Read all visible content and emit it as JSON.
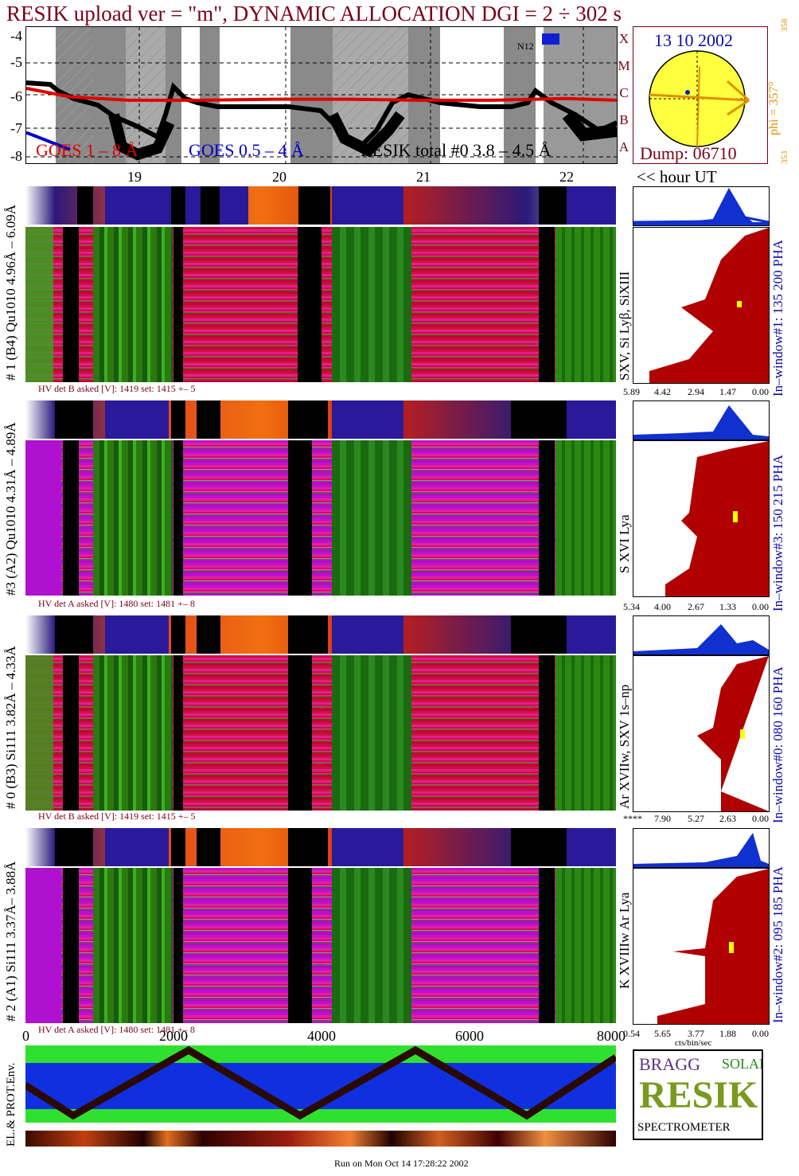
{
  "title": "RESIK upload ver = \"m\", DYNAMIC ALLOCATION  DGI =   2 ÷ 302 s",
  "goes": {
    "y_ticks": [
      "-4",
      "-5",
      "-6",
      "-7",
      "-8"
    ],
    "legend_goes1": "GOES 1 – 8 Å",
    "legend_goes2": "GOES 0.5 – 4 Å",
    "legend_resik": "RESIK total #0  3.8 – 4.5 Å",
    "class_labels": [
      "X",
      "M",
      "C",
      "B",
      "A"
    ],
    "hour_labels": [
      "19",
      "20",
      "21",
      "22"
    ],
    "hour_axis_caption": "<< hour UT",
    "annotation": "N12"
  },
  "sun": {
    "date": "13 10 2002",
    "phi": "phi = 357°",
    "phi_top": "358",
    "phi_bottom": "353",
    "dump": "Dump: 06710"
  },
  "panels": [
    {
      "left_label": "# 1 (B4) Qu1010 4.96Å – 6.09Å",
      "right_label": "SXV, Si Lyβ, SiXIII",
      "window_label": "In–window#1:  135 200 PHA",
      "hv": "HV det B asked [V]:  1419 set:  1415  +–    5",
      "xticks": [
        "5.89",
        "4.42",
        "2.94",
        "1.47",
        "0.00"
      ]
    },
    {
      "left_label": "#3 (A2) Qu1010  4.31Å – 4.89Å",
      "right_label": "S XVI Lya",
      "window_label": "In–window#3:  150 215 PHA",
      "hv": "HV det A asked [V]:  1480 set:  1481  +–    8",
      "xticks": [
        "5.34",
        "4.00",
        "2.67",
        "1.33",
        "0.00"
      ]
    },
    {
      "left_label": "# 0 (B3) Si111  3.82Å – 4.33Å",
      "right_label": "Ar XVIIw,  SXV 1s–np",
      "window_label": "In–window#0:  080 160 PHA",
      "hv": "HV det B asked [V]:  1419 set:  1415  +–    5",
      "xticks": [
        "****",
        "7.90",
        "5.27",
        "2.63",
        "0.00"
      ]
    },
    {
      "left_label": "# 2 (A1) Si111  3.37Å– 3.88Å",
      "right_label": "K XVIIIw  Ar Lya",
      "window_label": "In–window#2:  095 185 PHA",
      "hv": "HV det A asked [V]:  1480 set:  1481  +–    8",
      "xticks": [
        "0.54",
        "5.65",
        "3.77",
        "1.88",
        "0.00"
      ]
    }
  ],
  "bottom": {
    "x_ticks": [
      "0",
      "2000",
      "4000",
      "6000",
      "8000"
    ],
    "x_caption": "cts/bin/sec",
    "env_label": "EL.& PROT.Env.",
    "footer": "Run on Mon Oct 14 17:28:22 2002"
  },
  "logo": {
    "word1": "BRAGG",
    "word2": "RESIK",
    "word3": "SOLAR",
    "caption": "SPECTROMETER"
  },
  "chart_data": {
    "type": "line",
    "title": "RESIK upload ver = \"m\", DYNAMIC ALLOCATION  DGI =   2 ÷ 302 s",
    "xlabel": "hour UT",
    "ylabel": "",
    "xlim": [
      18.3,
      22.35
    ],
    "ylim": [
      -8,
      -4
    ],
    "x": [
      18.3,
      18.6,
      19.0,
      19.5,
      20.0,
      20.5,
      21.0,
      21.5,
      22.0,
      22.35
    ],
    "series": [
      {
        "name": "GOES 1 – 8 Å",
        "color": "#e00000",
        "values": [
          -5.8,
          -6.05,
          -6.15,
          -6.15,
          -6.12,
          -6.12,
          -6.15,
          -6.15,
          -6.1,
          -6.15
        ]
      },
      {
        "name": "GOES 0.5 – 4 Å",
        "color": "#0000cc",
        "values": [
          -7.1,
          -7.6,
          null,
          null,
          null,
          null,
          null,
          null,
          null,
          null
        ]
      }
    ]
  }
}
